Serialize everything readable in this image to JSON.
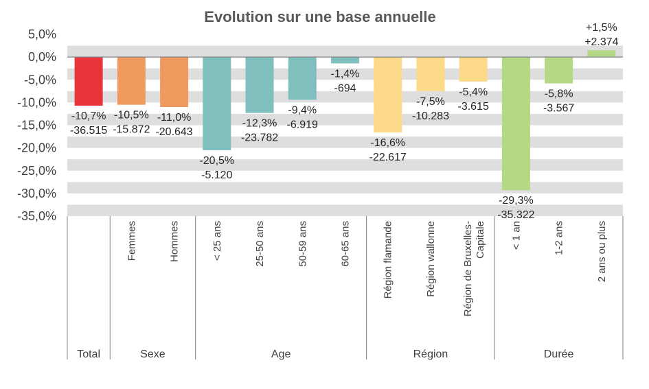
{
  "chart_data": {
    "type": "bar",
    "title": "Evolution sur une base annuelle",
    "ylim": [
      -35,
      5
    ],
    "grid": "horizontal bands",
    "yticks": [
      "5,0%",
      "0,0%",
      "-5,0%",
      "-10,0%",
      "-15,0%",
      "-20,0%",
      "-25,0%",
      "-30,0%",
      "-35,0%"
    ],
    "bars": [
      {
        "category": "Total",
        "value": -10.7,
        "pct_label": "-10,7%",
        "abs_label": "-36.515",
        "color": "#e8353b"
      },
      {
        "category": "Femmes",
        "value": -10.5,
        "pct_label": "-10,5%",
        "abs_label": "-15.872",
        "color": "#f19a60"
      },
      {
        "category": "Hommes",
        "value": -11.0,
        "pct_label": "-11,0%",
        "abs_label": "-20.643",
        "color": "#f19a60"
      },
      {
        "category": "< 25 ans",
        "value": -20.5,
        "pct_label": "-20,5%",
        "abs_label": "-5.120",
        "color": "#7fbfbe"
      },
      {
        "category": "25-50 ans",
        "value": -12.3,
        "pct_label": "-12,3%",
        "abs_label": "-23.782",
        "color": "#7fbfbe"
      },
      {
        "category": "50-59 ans",
        "value": -9.4,
        "pct_label": "-9,4%",
        "abs_label": "-6.919",
        "color": "#7fbfbe"
      },
      {
        "category": "60-65 ans",
        "value": -1.4,
        "pct_label": "-1,4%",
        "abs_label": "-694",
        "color": "#7fbfbe"
      },
      {
        "category": "Région flamande",
        "value": -16.6,
        "pct_label": "-16,6%",
        "abs_label": "-22.617",
        "color": "#fdd98a"
      },
      {
        "category": "Région wallonne",
        "value": -7.5,
        "pct_label": "-7,5%",
        "abs_label": "-10.283",
        "color": "#fdd98a"
      },
      {
        "category": "Région de Bruxelles-Capitale",
        "value": -5.4,
        "pct_label": "-5,4%",
        "abs_label": "-3.615",
        "color": "#fdd98a"
      },
      {
        "category": "< 1 an",
        "value": -29.3,
        "pct_label": "-29,3%",
        "abs_label": "-35.322",
        "color": "#b5d886"
      },
      {
        "category": "1-2 ans",
        "value": -5.8,
        "pct_label": "-5,8%",
        "abs_label": "-3.567",
        "color": "#b5d886"
      },
      {
        "category": "2 ans ou plus",
        "value": 1.5,
        "pct_label": "+1,5%",
        "abs_label": "+2.374",
        "color": "#b5d886"
      }
    ],
    "groups": [
      {
        "label": "Total",
        "bars": [
          0
        ]
      },
      {
        "label": "Sexe",
        "bars": [
          1,
          2
        ]
      },
      {
        "label": "Age",
        "bars": [
          3,
          4,
          5,
          6
        ]
      },
      {
        "label": "Région",
        "bars": [
          7,
          8,
          9
        ]
      },
      {
        "label": "Durée",
        "bars": [
          10,
          11,
          12
        ]
      }
    ]
  }
}
